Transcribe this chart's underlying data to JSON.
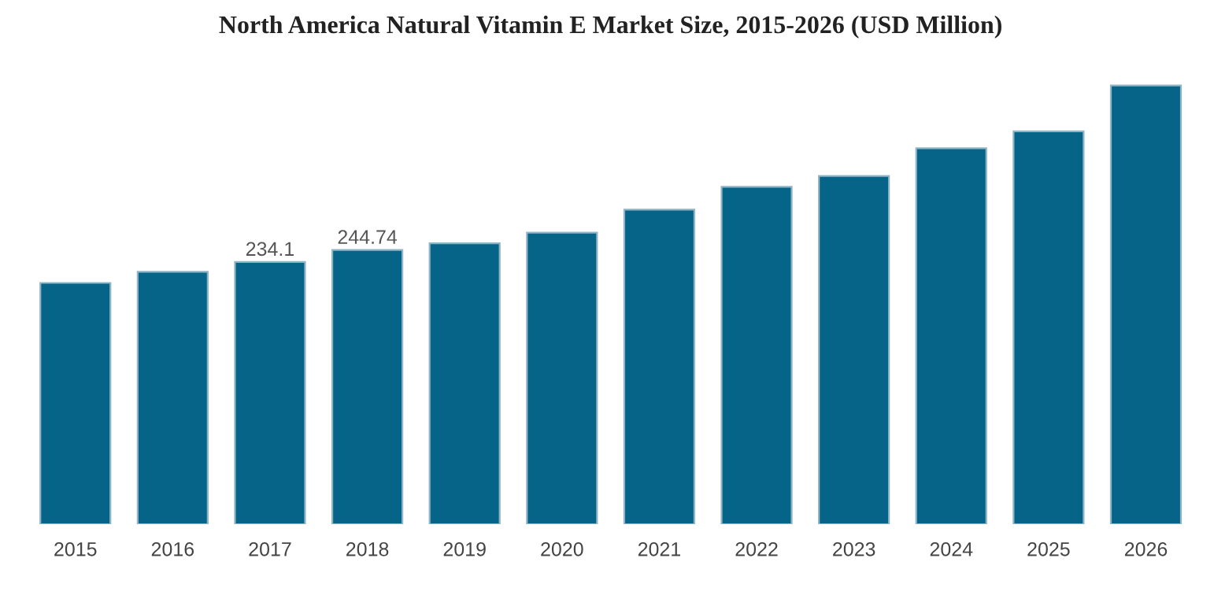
{
  "chart_data": {
    "type": "bar",
    "title": "North America Natural Vitamin E Market Size, 2015-2026 (USD Million)",
    "categories": [
      "2015",
      "2016",
      "2017",
      "2018",
      "2019",
      "2020",
      "2021",
      "2022",
      "2023",
      "2024",
      "2025",
      "2026"
    ],
    "values": [
      215.4,
      225.3,
      234.1,
      244.74,
      250.8,
      260.3,
      280.8,
      301.2,
      310.8,
      335.7,
      350.7,
      391.6
    ],
    "value_labels": [
      null,
      null,
      "234.1",
      "244.74",
      null,
      null,
      null,
      null,
      null,
      null,
      null,
      null
    ],
    "color": "#066489",
    "tick_labels": "x",
    "grid": false,
    "legend": false
  }
}
